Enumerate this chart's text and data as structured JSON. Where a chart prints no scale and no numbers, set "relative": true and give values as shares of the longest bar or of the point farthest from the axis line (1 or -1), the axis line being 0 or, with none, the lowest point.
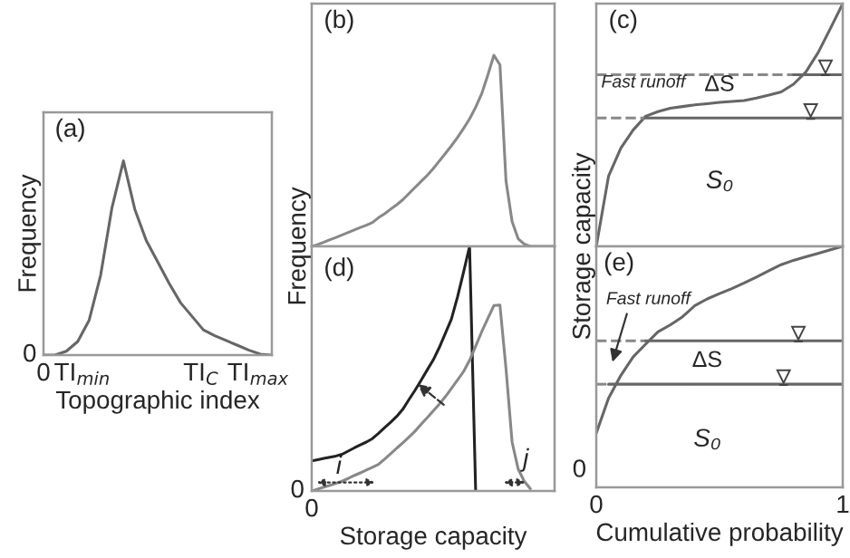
{
  "chart_data": [
    {
      "type": "line",
      "relative": true,
      "xlabel": "Topographic index",
      "ylabel": "Frequency",
      "categories": [
        null,
        null,
        null,
        null,
        null,
        null,
        null,
        null,
        null,
        null,
        null,
        null,
        null,
        null,
        null,
        null,
        null,
        null,
        null,
        null,
        null
      ],
      "annotations": [
        "(a)",
        "0",
        "0",
        "TI$_{min}$",
        "TI$_{C}$",
        "TI$_{max}$"
      ],
      "series": [
        {
          "color": "#666666",
          "values": [
            0,
            0,
            0.02,
            0.07,
            0.18,
            0.41,
            0.76,
            1,
            0.75,
            0.59,
            0.48,
            0.37,
            0.27,
            0.2,
            0.13,
            0.1,
            0.075,
            0.05,
            0.025,
            0.005,
            0
          ]
        }
      ]
    },
    {
      "type": "line",
      "relative": true,
      "ylabel": "Frequency",
      "categories": [
        null,
        null,
        null,
        null,
        null,
        null,
        null,
        null,
        null,
        null,
        null,
        null,
        null,
        null,
        null,
        null,
        null,
        null,
        null,
        null,
        null,
        null,
        null,
        null,
        null,
        null,
        null,
        null,
        null,
        null,
        null,
        null,
        null,
        null,
        null,
        null,
        null,
        null,
        null,
        null,
        null
      ],
      "annotations": [
        "(b)"
      ],
      "series": [
        {
          "color": "#888888",
          "values": [
            0,
            0.01,
            0.022,
            0.035,
            0.047,
            0.06,
            0.073,
            0.086,
            0.099,
            0.111,
            0.125,
            0.15,
            0.171,
            0.195,
            0.218,
            0.244,
            0.276,
            0.308,
            0.339,
            0.371,
            0.406,
            0.446,
            0.486,
            0.526,
            0.569,
            0.617,
            0.667,
            0.728,
            0.799,
            0.896,
            1,
            0.95,
            0.342,
            0.13,
            0.04,
            0.012,
            0,
            0,
            0,
            0,
            0
          ]
        }
      ]
    },
    {
      "type": "line",
      "relative": true,
      "ylabel": "Storage capacity",
      "categories": [
        null,
        null,
        null,
        null,
        null,
        null,
        null,
        null,
        null,
        null,
        null,
        null,
        null,
        null,
        null,
        null,
        null,
        null,
        null,
        null,
        null
      ],
      "annotations": [
        "(c)",
        "Fast runoff",
        "ΔS",
        "S₀"
      ],
      "series": [
        {
          "color": "#666666",
          "values": [
            0,
            0.29,
            0.405,
            0.48,
            0.536,
            0.555,
            0.569,
            0.576,
            0.583,
            0.588,
            0.593,
            0.597,
            0.601,
            0.611,
            0.623,
            0.636,
            0.668,
            0.718,
            0.798,
            0.898,
            1
          ]
        },
        {
          "color": "#888888",
          "line_style": "dashed",
          "values": [
            0.707,
            0.707,
            0.707,
            0.707,
            0.707,
            0.707,
            0.707,
            0.707,
            0.707,
            0.707,
            0.707,
            0.707,
            0.707,
            0.707,
            0.707,
            0.707,
            0.707,
            null,
            null,
            null,
            null
          ]
        },
        {
          "color": "#666666",
          "line_style": "solid",
          "values": [
            null,
            null,
            null,
            null,
            null,
            null,
            null,
            null,
            null,
            null,
            null,
            null,
            null,
            null,
            null,
            null,
            0.707,
            0.707,
            0.707,
            0.707,
            0.707
          ]
        },
        {
          "color": "#888888",
          "line_style": "dashed",
          "values": [
            0.529,
            0.529,
            0.529,
            0.529,
            0.529,
            null,
            null,
            null,
            null,
            null,
            null,
            null,
            null,
            null,
            null,
            null,
            null,
            null,
            null,
            null,
            null
          ]
        },
        {
          "color": "#666666",
          "line_style": "solid",
          "values": [
            null,
            null,
            null,
            null,
            0.529,
            0.529,
            0.529,
            0.529,
            0.529,
            0.529,
            0.529,
            0.529,
            0.529,
            0.529,
            0.529,
            0.529,
            0.529,
            0.529,
            0.529,
            0.529,
            0.529
          ]
        }
      ]
    },
    {
      "type": "line",
      "relative": true,
      "xlabel": "Storage capacity",
      "categories": [
        null,
        null,
        null,
        null,
        null,
        null,
        null,
        null,
        null,
        null,
        null,
        null,
        null,
        null,
        null,
        null,
        null,
        null,
        null,
        null,
        null,
        null,
        null,
        null,
        null,
        null,
        null,
        null,
        null,
        null,
        null,
        null,
        null,
        null,
        null,
        null,
        null,
        null,
        null,
        null,
        null
      ],
      "annotations": [
        "(d)",
        "i",
        "j",
        "0",
        "0"
      ],
      "series": [
        {
          "color": "#222222",
          "values": [
            0.123,
            0.128,
            0.133,
            0.138,
            0.143,
            0.15,
            0.163,
            0.176,
            0.188,
            0.2,
            0.214,
            0.236,
            0.259,
            0.281,
            0.305,
            0.334,
            0.373,
            0.411,
            0.452,
            0.494,
            0.535,
            0.586,
            0.644,
            0.702,
            0.792,
            0.894,
            1,
            0,
            null,
            null,
            null,
            null,
            null,
            null,
            null,
            null,
            null,
            null,
            null,
            null,
            null
          ]
        },
        {
          "color": "#888888",
          "values": [
            0,
            0.008,
            0.016,
            0.023,
            0.031,
            0.04,
            0.051,
            0.063,
            0.074,
            0.086,
            0.097,
            0.109,
            0.13,
            0.152,
            0.175,
            0.197,
            0.22,
            0.244,
            0.272,
            0.299,
            0.327,
            0.355,
            0.385,
            0.419,
            0.453,
            0.488,
            0.534,
            0.592,
            0.651,
            0.705,
            0.758,
            0.76,
            0.5,
            0.2,
            0.09,
            0.04,
            0.009,
            null,
            null,
            null,
            null
          ]
        }
      ]
    },
    {
      "type": "line",
      "relative": true,
      "xlabel": "Cumulative probability",
      "categories": [
        null,
        null,
        null,
        null,
        null,
        null,
        null,
        null,
        null,
        null,
        null,
        null,
        null,
        null,
        null,
        null,
        null,
        null,
        null,
        null,
        null
      ],
      "annotations": [
        "0",
        "0",
        "1",
        "(e)",
        "Fast runoff",
        "ΔS",
        "S₀"
      ],
      "series": [
        {
          "color": "#666666",
          "values": [
            0.225,
            0.37,
            0.465,
            0.542,
            0.594,
            0.645,
            0.674,
            0.708,
            0.754,
            0.782,
            0.804,
            0.825,
            0.848,
            0.873,
            0.899,
            0.924,
            0.942,
            0.957,
            0.971,
            0.986,
            1
          ]
        },
        {
          "color": "#888888",
          "line_style": "dashed",
          "values": [
            0.608,
            0.608,
            0.608,
            0.608,
            0.608,
            null,
            null,
            null,
            null,
            null,
            null,
            null,
            null,
            null,
            null,
            null,
            null,
            null,
            null,
            null,
            null
          ]
        },
        {
          "color": "#666666",
          "line_style": "solid",
          "values": [
            null,
            null,
            null,
            null,
            0.608,
            0.608,
            0.608,
            0.608,
            0.608,
            0.608,
            0.608,
            0.608,
            0.608,
            0.608,
            0.608,
            0.608,
            0.608,
            0.608,
            0.608,
            0.608,
            0.608
          ]
        },
        {
          "color": "#888888",
          "line_style": "dashed",
          "values": [
            0.428,
            0.428,
            null,
            null,
            null,
            null,
            null,
            null,
            null,
            null,
            null,
            null,
            null,
            null,
            null,
            null,
            null,
            null,
            null,
            null,
            null
          ]
        },
        {
          "color": "#666666",
          "line_style": "solid",
          "values": [
            null,
            0.428,
            0.428,
            0.428,
            0.428,
            0.428,
            0.428,
            0.428,
            0.428,
            0.428,
            0.428,
            0.428,
            0.428,
            0.428,
            0.428,
            0.428,
            0.428,
            0.428,
            0.428,
            0.428,
            0.428
          ]
        }
      ]
    }
  ]
}
